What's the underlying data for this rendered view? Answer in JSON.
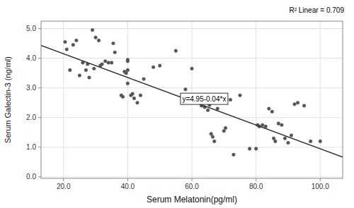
{
  "chart_data": {
    "type": "scatter",
    "xlabel": "Serum Melatonin(pg/ml)",
    "ylabel": "Serum Galectin-3 (ng/ml)",
    "series": [
      {
        "type": "scatter",
        "color": "#555555",
        "x": [
          20.5,
          21.0,
          22.0,
          23.0,
          24.0,
          25.0,
          26.0,
          27.0,
          27.5,
          28.0,
          29.0,
          29.5,
          30.0,
          31.0,
          31.5,
          32.0,
          33.0,
          34.0,
          35.0,
          35.5,
          36.0,
          38.0,
          38.5,
          39.0,
          39.5,
          40.0,
          40.0,
          40.0,
          40.0,
          41.0,
          41.5,
          42.0,
          43.0,
          44.0,
          45.0,
          48.0,
          50.0,
          55.0,
          58.0,
          60.0,
          63.0,
          64.0,
          65.0,
          65.5,
          66.0,
          66.5,
          67.0,
          68.0,
          70.0,
          70.5,
          72.0,
          73.0,
          75.0,
          78.0,
          80.0,
          80.5,
          81.0,
          82.0,
          83.0,
          84.0,
          85.0,
          85.5,
          86.0,
          87.0,
          88.0,
          89.0,
          90.0,
          91.0,
          92.0,
          93.0,
          95.0,
          97.0,
          100.0
        ],
        "values": [
          4.55,
          4.3,
          3.6,
          4.45,
          4.6,
          3.42,
          3.85,
          3.6,
          3.8,
          3.35,
          4.95,
          3.65,
          4.7,
          4.6,
          3.75,
          3.8,
          3.9,
          3.85,
          3.85,
          4.5,
          4.2,
          2.75,
          2.7,
          3.55,
          3.5,
          3.9,
          3.95,
          3.15,
          3.6,
          2.75,
          2.8,
          2.65,
          2.5,
          2.75,
          3.3,
          3.7,
          3.75,
          4.25,
          2.95,
          3.65,
          2.4,
          2.35,
          2.25,
          2.42,
          1.45,
          1.35,
          1.2,
          2.3,
          1.55,
          1.65,
          2.6,
          0.75,
          2.75,
          0.95,
          0.95,
          1.75,
          1.7,
          1.75,
          1.7,
          2.3,
          2.2,
          1.3,
          1.2,
          1.8,
          1.75,
          1.3,
          1.15,
          1.4,
          2.45,
          2.5,
          2.4,
          1.2,
          1.2
        ]
      },
      {
        "type": "line",
        "color": "#333333",
        "x": [
          13.0,
          107.0
        ],
        "values": [
          4.43,
          0.67
        ]
      }
    ],
    "annotations": [
      {
        "text": "y=4.95-0.04*x",
        "x": 57.0,
        "y": 2.55
      },
      {
        "text": "R² Linear = 0.709"
      }
    ],
    "xlim": [
      13.0,
      107.0
    ],
    "ylim": [
      -0.05,
      5.25
    ],
    "xticks": [
      {
        "value": 20.0,
        "label": "20.0"
      },
      {
        "value": 40.0,
        "label": "40.0"
      },
      {
        "value": 60.0,
        "label": "60.0"
      },
      {
        "value": 80.0,
        "label": "80.0"
      },
      {
        "value": 100.0,
        "label": "100.0"
      }
    ],
    "yticks": [
      {
        "value": 0.0,
        "label": "0.0"
      },
      {
        "value": 1.0,
        "label": "1.0"
      },
      {
        "value": 2.0,
        "label": "2.0"
      },
      {
        "value": 3.0,
        "label": "3.0"
      },
      {
        "value": 4.0,
        "label": "4.0"
      },
      {
        "value": 5.0,
        "label": "5.0"
      }
    ],
    "grid": true
  }
}
